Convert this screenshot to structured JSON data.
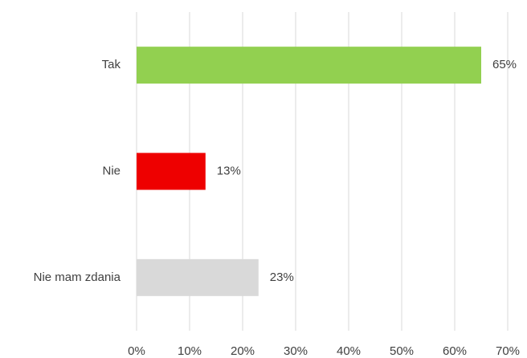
{
  "chart_data": {
    "type": "bar",
    "orientation": "horizontal",
    "categories": [
      "Tak",
      "Nie",
      "Nie mam zdania"
    ],
    "values": [
      65,
      13,
      23
    ],
    "value_labels": [
      "65%",
      "13%",
      "23%"
    ],
    "colors": [
      "#92d050",
      "#ee0000",
      "#d9d9d9"
    ],
    "xlim": [
      0,
      70
    ],
    "xticks": [
      {
        "value": 0,
        "label": "0%"
      },
      {
        "value": 10,
        "label": "10%"
      },
      {
        "value": 20,
        "label": "20%"
      },
      {
        "value": 30,
        "label": "30%"
      },
      {
        "value": 40,
        "label": "40%"
      },
      {
        "value": 50,
        "label": "50%"
      },
      {
        "value": 60,
        "label": "60%"
      },
      {
        "value": 70,
        "label": "70%"
      }
    ],
    "grid": true
  }
}
